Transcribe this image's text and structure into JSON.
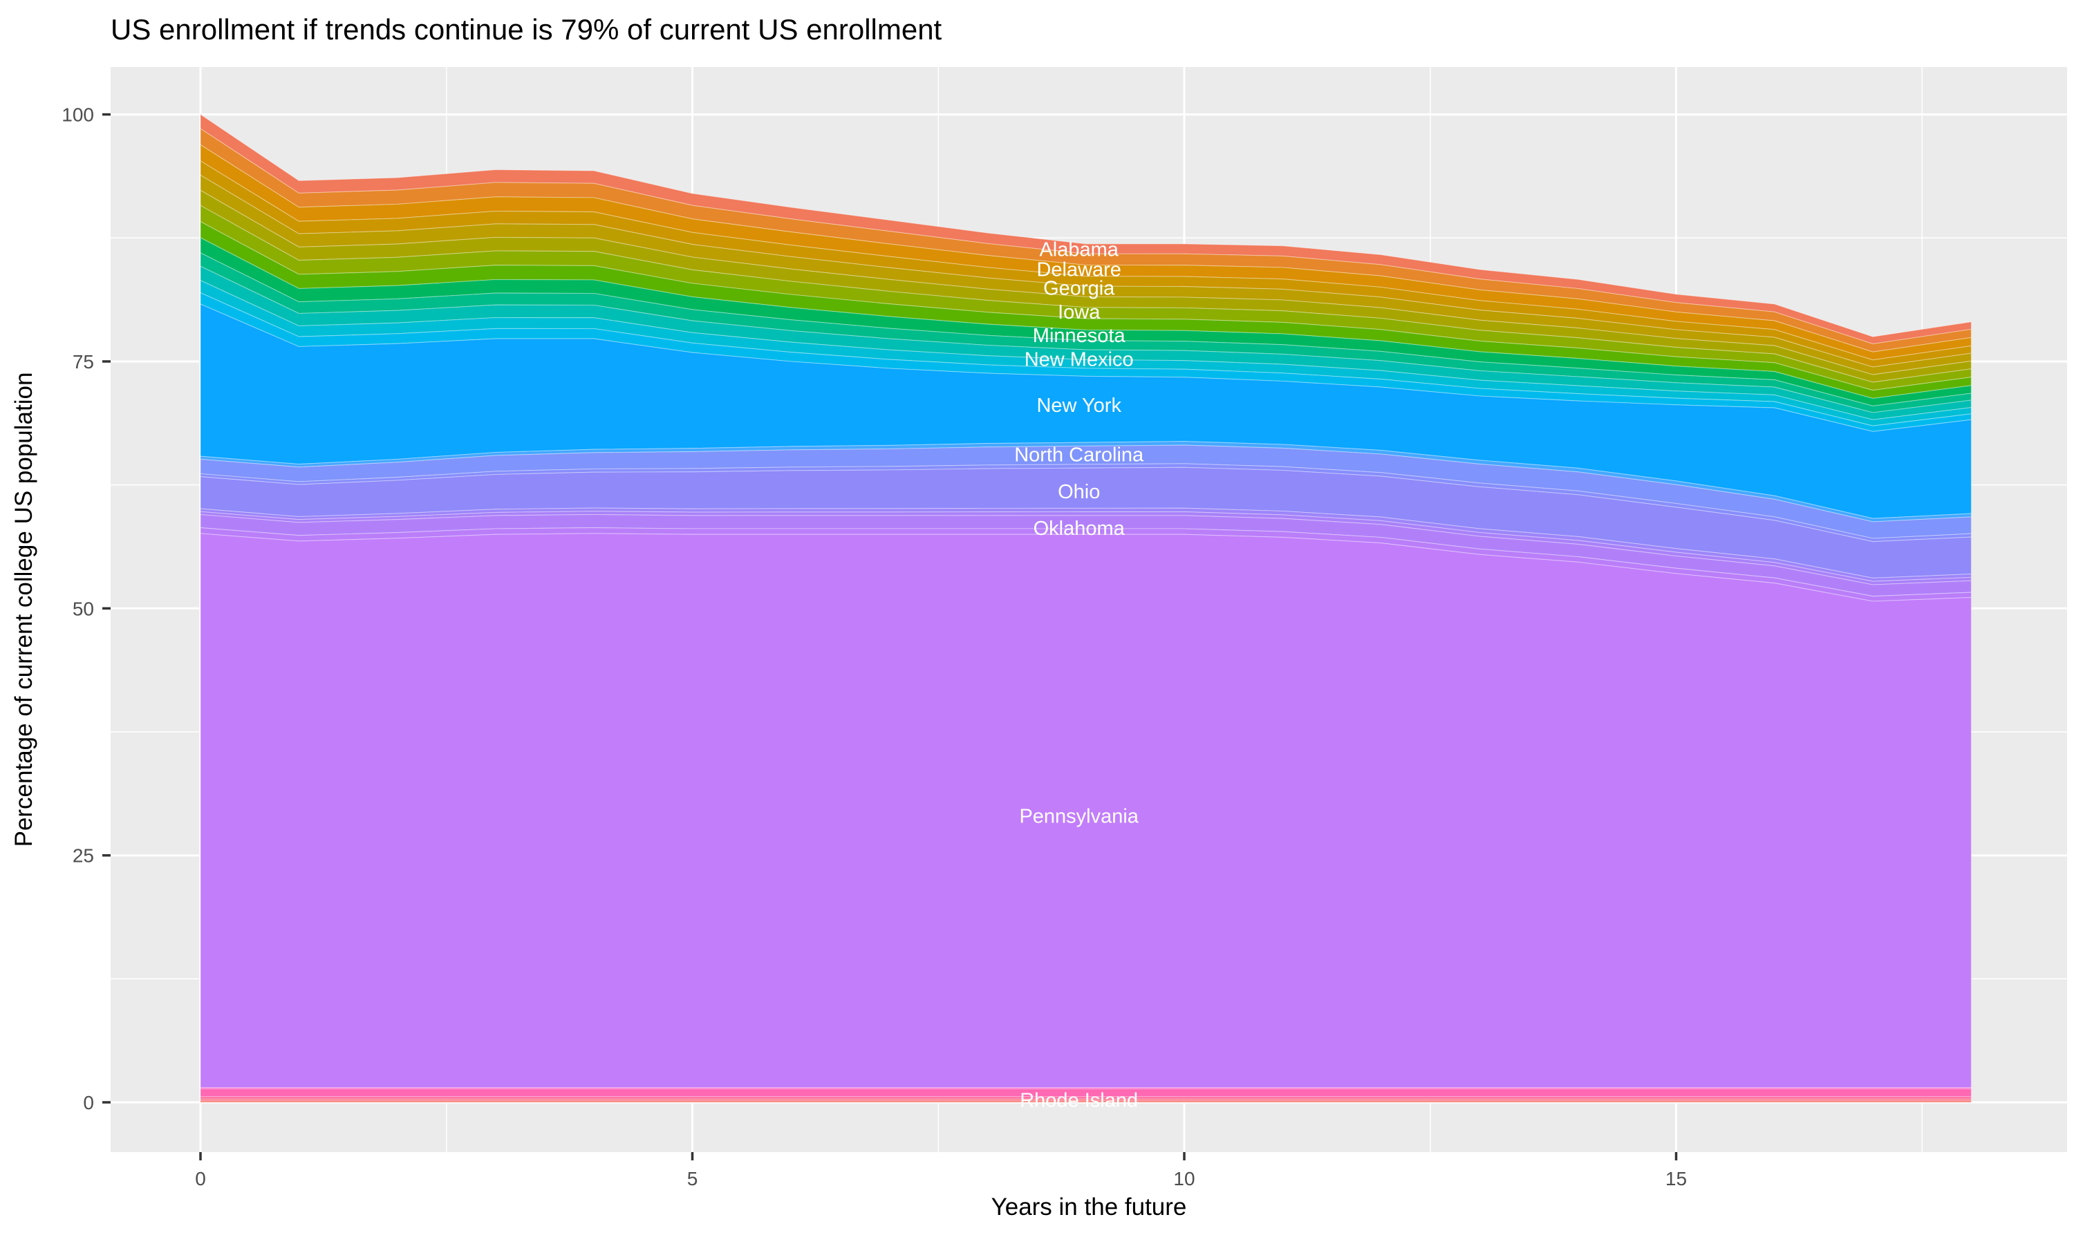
{
  "title": "US enrollment if trends continue is 79% of current US enrollment",
  "axes": {
    "x_label": "Years in the future",
    "y_label": "Percentage of current college US population",
    "x_ticks": [
      {
        "label": "0",
        "value": 0
      },
      {
        "label": "5",
        "value": 5
      },
      {
        "label": "10",
        "value": 10
      },
      {
        "label": "15",
        "value": 15
      }
    ],
    "y_ticks": [
      {
        "label": "0",
        "value": 0
      },
      {
        "label": "25",
        "value": 25
      },
      {
        "label": "50",
        "value": 50
      },
      {
        "label": "75",
        "value": 75
      },
      {
        "label": "100",
        "value": 100
      }
    ],
    "x_minor": [
      2.5,
      7.5,
      12.5,
      17.5
    ],
    "y_minor": [
      12.5,
      37.5,
      62.5,
      87.5
    ]
  },
  "colors": {
    "background": "#ffffff",
    "panel": "#ebebeb",
    "gridline": "#ffffff",
    "tick_text": "#4d4d4d",
    "title_text": "#000000",
    "state_label_text": "#ffffff"
  },
  "chart_data": {
    "type": "area",
    "stacked": true,
    "title": "US enrollment if trends continue is 79% of current US enrollment",
    "xlabel": "Years in the future",
    "ylabel": "Percentage of current college US population",
    "x_range": [
      0,
      18
    ],
    "y_range": [
      0,
      100
    ],
    "grid": true,
    "legend": false,
    "final_total_percent": 79,
    "x": [
      0,
      1,
      2,
      3,
      4,
      5,
      6,
      7,
      8,
      9,
      10,
      11,
      12,
      13,
      14,
      15,
      16,
      17,
      18
    ],
    "boundaries": {
      "total_top": [
        100,
        93.3,
        93.6,
        94.4,
        94.3,
        92.0,
        90.6,
        89.3,
        88.0,
        86.9,
        86.9,
        86.7,
        85.8,
        84.3,
        83.3,
        81.8,
        80.8,
        77.5,
        79.0
      ],
      "newyork_top": [
        80.8,
        76.5,
        76.8,
        77.3,
        77.3,
        75.9,
        75.0,
        74.3,
        73.8,
        73.5,
        73.4,
        73.0,
        72.4,
        71.5,
        71.0,
        70.6,
        70.3,
        67.9,
        69.1
      ],
      "newyork_bottom": [
        65.4,
        64.6,
        65.1,
        65.8,
        66.1,
        66.2,
        66.4,
        66.5,
        66.7,
        66.8,
        66.9,
        66.6,
        66.0,
        65.0,
        64.2,
        62.9,
        61.4,
        59.1,
        59.6
      ],
      "orchid_top": [
        59.5,
        58.7,
        59.0,
        59.4,
        59.5,
        59.4,
        59.4,
        59.4,
        59.4,
        59.4,
        59.4,
        59.1,
        58.5,
        57.3,
        56.5,
        55.3,
        54.3,
        52.4,
        52.8
      ],
      "pink_top": [
        1.5,
        1.5,
        1.5,
        1.5,
        1.5,
        1.5,
        1.5,
        1.5,
        1.5,
        1.5,
        1.5,
        1.5,
        1.5,
        1.5,
        1.5,
        1.5,
        1.5,
        1.5,
        1.5
      ],
      "baseline": [
        0,
        0,
        0,
        0,
        0,
        0,
        0,
        0,
        0,
        0,
        0,
        0,
        0,
        0,
        0,
        0,
        0,
        0,
        0
      ]
    },
    "zones": [
      {
        "name": "rainbow-top-states",
        "top": "total_top",
        "bottom": "newyork_top",
        "layers": [
          {
            "state": "Alabama",
            "color": "#F1795C",
            "f": 0
          },
          {
            "state": "",
            "color": "#E6872B",
            "f": 0.075
          },
          {
            "state": "Delaware",
            "color": "#DB8F04",
            "f": 0.16
          },
          {
            "state": "",
            "color": "#CC9600",
            "f": 0.245
          },
          {
            "state": "Georgia",
            "color": "#BC9E00",
            "f": 0.32
          },
          {
            "state": "",
            "color": "#A9A500",
            "f": 0.4
          },
          {
            "state": "Iowa",
            "color": "#8CAE00",
            "f": 0.48
          },
          {
            "state": "",
            "color": "#5BB300",
            "f": 0.565
          },
          {
            "state": "Minnesota",
            "color": "#00B75F",
            "f": 0.65
          },
          {
            "state": "",
            "color": "#00BB8A",
            "f": 0.73
          },
          {
            "state": "New Mexico",
            "color": "#00BEB3",
            "f": 0.8
          },
          {
            "state": "",
            "color": "#00BED6",
            "f": 0.875
          },
          {
            "state": "",
            "color": "#00BAEE",
            "f": 0.94
          }
        ]
      },
      {
        "name": "newyork",
        "top": "newyork_top",
        "bottom": "newyork_bottom",
        "layers": [
          {
            "state": "New York",
            "color": "#0AA6FF",
            "f": 0
          }
        ]
      },
      {
        "name": "periwinkle-states",
        "top": "newyork_bottom",
        "bottom": "orchid_top",
        "layers": [
          {
            "state": "",
            "color": "#45A8FF",
            "f": 0
          },
          {
            "state": "North Carolina",
            "color": "#7F94FC",
            "f": 0.05
          },
          {
            "state": "",
            "color": "#878EFB",
            "f": 0.3
          },
          {
            "state": "Ohio",
            "color": "#8F89FA",
            "f": 0.35
          },
          {
            "state": "",
            "color": "#9D85F9",
            "f": 0.9
          },
          {
            "state": "",
            "color": "#A981F8",
            "f": 0.95
          }
        ]
      },
      {
        "name": "orchid-states",
        "top": "orchid_top",
        "bottom": "pink_top",
        "layers": [
          {
            "state": "Oklahoma",
            "color": "#B180F9",
            "f": 0
          },
          {
            "state": "",
            "color": "#BA7EF9",
            "f": 0.023
          },
          {
            "state": "Pennsylvania",
            "color": "#C27DFB",
            "f": 0.033
          }
        ]
      },
      {
        "name": "bottom-states",
        "top": "pink_top",
        "bottom": "baseline",
        "layers": [
          {
            "state": "",
            "color": "#F96ED6",
            "f": 0
          },
          {
            "state": "Rhode Island",
            "color": "#FF68B3",
            "f": 0.09
          },
          {
            "state": "",
            "color": "#FF6A9D",
            "f": 0.62
          },
          {
            "state": "",
            "color": "#FC7186",
            "f": 0.78
          },
          {
            "state": "",
            "color": "#F8766D",
            "f": 0.9
          }
        ]
      }
    ],
    "state_labels": [
      {
        "name": "Alabama",
        "x": 8.93,
        "y": 86.35
      },
      {
        "name": "Delaware",
        "x": 8.93,
        "y": 84.35
      },
      {
        "name": "Georgia",
        "x": 8.93,
        "y": 82.45
      },
      {
        "name": "Iowa",
        "x": 8.93,
        "y": 80.05
      },
      {
        "name": "Minnesota",
        "x": 8.93,
        "y": 77.65
      },
      {
        "name": "New Mexico",
        "x": 8.93,
        "y": 75.25
      },
      {
        "name": "New York",
        "x": 8.93,
        "y": 70.6
      },
      {
        "name": "North Carolina",
        "x": 8.93,
        "y": 65.6
      },
      {
        "name": "Ohio",
        "x": 8.93,
        "y": 61.85
      },
      {
        "name": "Oklahoma",
        "x": 8.93,
        "y": 58.15
      },
      {
        "name": "Pennsylvania",
        "x": 8.93,
        "y": 29.0
      },
      {
        "name": "Rhode Island",
        "x": 8.93,
        "y": 0.25
      }
    ]
  }
}
